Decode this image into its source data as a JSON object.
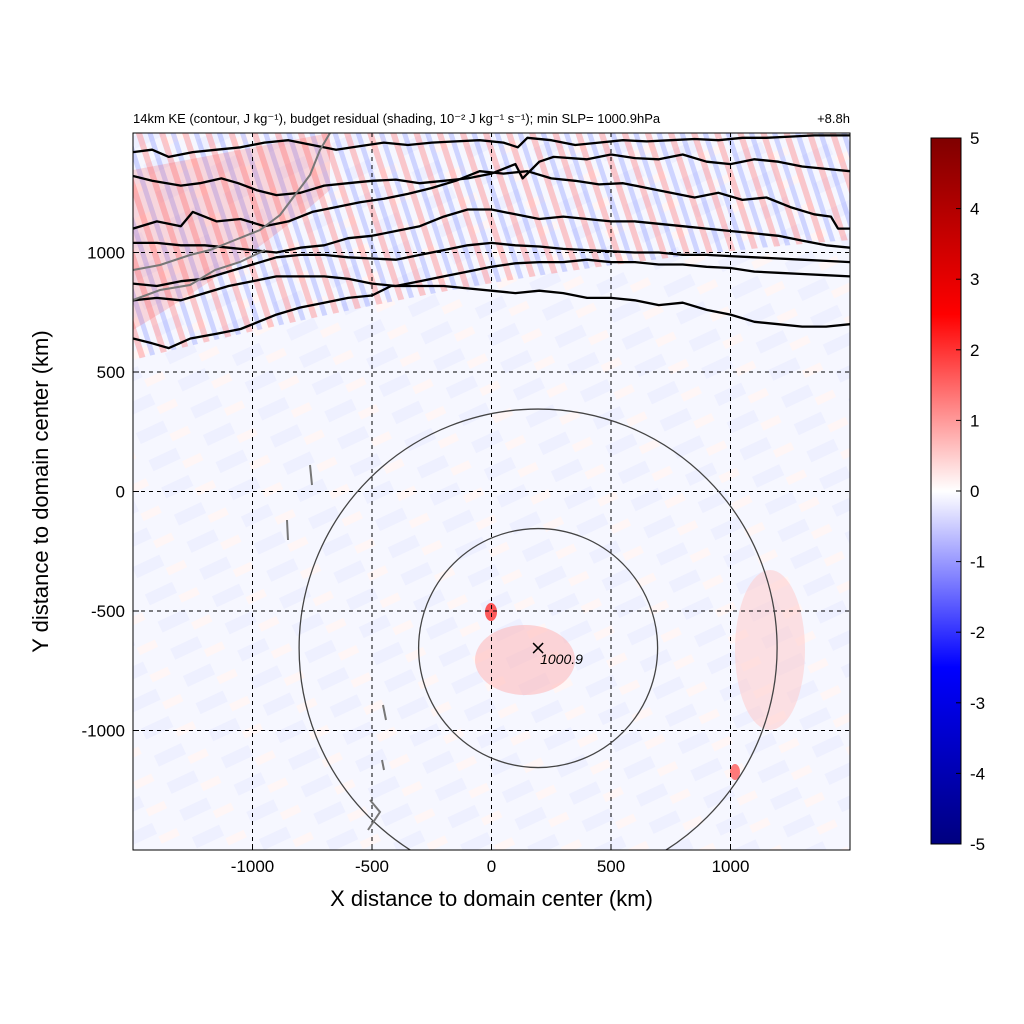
{
  "chart_data": {
    "type": "heatmap",
    "title": "14km KE (contour, J kg⁻¹), budget residual (shading, 10⁻² J kg⁻¹ s⁻¹); min SLP= 1000.9hPa",
    "time_label": "+8.8h",
    "xlabel": "X distance to domain center (km)",
    "ylabel": "Y distance to domain center (km)",
    "xlim": [
      -1500,
      1500
    ],
    "ylim": [
      -1500,
      1500
    ],
    "xticks": [
      -1000,
      -500,
      0,
      500,
      1000
    ],
    "yticks": [
      -1000,
      -500,
      0,
      500,
      1000
    ],
    "grid": true,
    "colorbar": {
      "range": [
        -5,
        5
      ],
      "ticks": [
        5,
        4,
        3,
        2,
        1,
        0,
        -1,
        -2,
        -3,
        -4,
        -5
      ],
      "colors": [
        "#000080",
        "#0000ff",
        "#ffffff",
        "#ff0000",
        "#800000"
      ]
    },
    "storm_center": {
      "x": 195,
      "y": -655,
      "label": "1000.9"
    },
    "range_circles_km": [
      500,
      1000
    ],
    "ke_contours": [
      {
        "points": [
          [
            -1500,
            640
          ],
          [
            -1420,
            620
          ],
          [
            -1350,
            600
          ],
          [
            -1260,
            640
          ],
          [
            -1150,
            660
          ],
          [
            -1050,
            680
          ],
          [
            -900,
            740
          ],
          [
            -800,
            770
          ],
          [
            -700,
            790
          ],
          [
            -600,
            810
          ],
          [
            -500,
            820
          ],
          [
            -420,
            860
          ],
          [
            -300,
            860
          ],
          [
            -200,
            860
          ],
          [
            -100,
            850
          ],
          [
            0,
            840
          ],
          [
            100,
            830
          ],
          [
            200,
            840
          ],
          [
            300,
            830
          ],
          [
            400,
            810
          ],
          [
            500,
            810
          ],
          [
            600,
            800
          ],
          [
            700,
            780
          ],
          [
            800,
            790
          ],
          [
            900,
            760
          ],
          [
            1000,
            740
          ],
          [
            1100,
            710
          ],
          [
            1200,
            700
          ],
          [
            1300,
            690
          ],
          [
            1400,
            690
          ],
          [
            1500,
            700
          ]
        ]
      },
      {
        "points": [
          [
            -1500,
            800
          ],
          [
            -1400,
            810
          ],
          [
            -1300,
            800
          ],
          [
            -1200,
            830
          ],
          [
            -1100,
            860
          ],
          [
            -1000,
            880
          ],
          [
            -900,
            900
          ],
          [
            -800,
            900
          ],
          [
            -700,
            900
          ],
          [
            -600,
            890
          ],
          [
            -500,
            870
          ],
          [
            -400,
            860
          ],
          [
            -300,
            880
          ],
          [
            -200,
            900
          ],
          [
            -100,
            920
          ],
          [
            0,
            940
          ],
          [
            100,
            955
          ],
          [
            200,
            960
          ],
          [
            300,
            960
          ],
          [
            400,
            970
          ],
          [
            500,
            960
          ],
          [
            600,
            960
          ],
          [
            700,
            950
          ],
          [
            800,
            950
          ],
          [
            900,
            940
          ],
          [
            1000,
            935
          ],
          [
            1100,
            920
          ],
          [
            1200,
            915
          ],
          [
            1300,
            910
          ],
          [
            1400,
            905
          ],
          [
            1500,
            900
          ]
        ]
      },
      {
        "points": [
          [
            -1500,
            870
          ],
          [
            -1400,
            860
          ],
          [
            -1300,
            880
          ],
          [
            -1200,
            890
          ],
          [
            -1100,
            920
          ],
          [
            -1000,
            950
          ],
          [
            -900,
            980
          ],
          [
            -800,
            990
          ],
          [
            -700,
            990
          ],
          [
            -600,
            980
          ],
          [
            -500,
            975
          ],
          [
            -400,
            970
          ],
          [
            -300,
            990
          ],
          [
            -200,
            1010
          ],
          [
            -100,
            1030
          ],
          [
            0,
            1040
          ],
          [
            100,
            1030
          ],
          [
            200,
            1025
          ],
          [
            300,
            1015
          ],
          [
            400,
            1010
          ],
          [
            500,
            1005
          ],
          [
            600,
            1000
          ],
          [
            700,
            1000
          ],
          [
            800,
            990
          ],
          [
            900,
            990
          ],
          [
            1000,
            985
          ],
          [
            1100,
            980
          ],
          [
            1200,
            975
          ],
          [
            1300,
            970
          ],
          [
            1400,
            965
          ],
          [
            1500,
            960
          ]
        ]
      },
      {
        "points": [
          [
            -1500,
            1040
          ],
          [
            -1400,
            1040
          ],
          [
            -1300,
            1030
          ],
          [
            -1200,
            1030
          ],
          [
            -1100,
            1020
          ],
          [
            -1000,
            1010
          ],
          [
            -900,
            1000
          ],
          [
            -800,
            1020
          ],
          [
            -700,
            1030
          ],
          [
            -600,
            1060
          ],
          [
            -500,
            1070
          ],
          [
            -400,
            1090
          ],
          [
            -300,
            1110
          ],
          [
            -200,
            1150
          ],
          [
            -100,
            1180
          ],
          [
            0,
            1180
          ],
          [
            100,
            1160
          ],
          [
            200,
            1140
          ],
          [
            300,
            1150
          ],
          [
            400,
            1140
          ],
          [
            500,
            1130
          ],
          [
            600,
            1130
          ],
          [
            700,
            1120
          ],
          [
            800,
            1110
          ],
          [
            900,
            1100
          ],
          [
            1000,
            1090
          ],
          [
            1100,
            1080
          ],
          [
            1200,
            1070
          ],
          [
            1300,
            1050
          ],
          [
            1400,
            1030
          ],
          [
            1500,
            1020
          ]
        ]
      },
      {
        "points": [
          [
            -1500,
            1100
          ],
          [
            -1400,
            1130
          ],
          [
            -1300,
            1110
          ],
          [
            -1250,
            1170
          ],
          [
            -1150,
            1130
          ],
          [
            -1050,
            1140
          ],
          [
            -950,
            1110
          ],
          [
            -850,
            1130
          ],
          [
            -750,
            1170
          ],
          [
            -650,
            1190
          ],
          [
            -550,
            1210
          ],
          [
            -450,
            1225
          ],
          [
            -350,
            1245
          ],
          [
            -250,
            1270
          ],
          [
            -150,
            1300
          ],
          [
            -50,
            1340
          ],
          [
            50,
            1330
          ],
          [
            150,
            1340
          ],
          [
            250,
            1310
          ],
          [
            350,
            1300
          ],
          [
            450,
            1285
          ],
          [
            550,
            1290
          ],
          [
            650,
            1270
          ],
          [
            750,
            1250
          ],
          [
            850,
            1230
          ],
          [
            950,
            1250
          ],
          [
            1050,
            1220
          ],
          [
            1150,
            1230
          ],
          [
            1250,
            1190
          ],
          [
            1350,
            1160
          ],
          [
            1420,
            1150
          ],
          [
            1450,
            1100
          ],
          [
            1500,
            1100
          ]
        ]
      },
      {
        "points": [
          [
            -1500,
            1320
          ],
          [
            -1420,
            1300
          ],
          [
            -1300,
            1280
          ],
          [
            -1220,
            1290
          ],
          [
            -1130,
            1310
          ],
          [
            -1060,
            1290
          ],
          [
            -980,
            1260
          ],
          [
            -900,
            1240
          ],
          [
            -800,
            1250
          ],
          [
            -700,
            1280
          ],
          [
            -600,
            1290
          ],
          [
            -500,
            1300
          ],
          [
            -400,
            1305
          ],
          [
            -300,
            1290
          ],
          [
            -200,
            1300
          ],
          [
            -100,
            1310
          ],
          [
            0,
            1330
          ],
          [
            100,
            1370
          ],
          [
            130,
            1310
          ],
          [
            200,
            1380
          ],
          [
            260,
            1400
          ],
          [
            400,
            1390
          ],
          [
            500,
            1410
          ],
          [
            600,
            1395
          ],
          [
            700,
            1390
          ],
          [
            800,
            1410
          ],
          [
            900,
            1380
          ],
          [
            1000,
            1370
          ],
          [
            1100,
            1390
          ],
          [
            1200,
            1380
          ],
          [
            1300,
            1360
          ],
          [
            1400,
            1350
          ],
          [
            1500,
            1340
          ]
        ]
      },
      {
        "points": [
          [
            -1500,
            1420
          ],
          [
            -1420,
            1430
          ],
          [
            -1350,
            1400
          ],
          [
            -1250,
            1420
          ],
          [
            -1150,
            1430
          ],
          [
            -1050,
            1440
          ],
          [
            -950,
            1460
          ],
          [
            -850,
            1470
          ],
          [
            -750,
            1450
          ],
          [
            -650,
            1430
          ],
          [
            -550,
            1445
          ],
          [
            -450,
            1460
          ],
          [
            -350,
            1450
          ],
          [
            -250,
            1460
          ],
          [
            -150,
            1465
          ],
          [
            -50,
            1470
          ],
          [
            50,
            1460
          ],
          [
            110,
            1440
          ],
          [
            150,
            1480
          ],
          [
            250,
            1470
          ],
          [
            350,
            1450
          ],
          [
            450,
            1460
          ],
          [
            550,
            1470
          ],
          [
            650,
            1465
          ],
          [
            750,
            1470
          ],
          [
            850,
            1475
          ],
          [
            950,
            1470
          ],
          [
            1050,
            1480
          ],
          [
            1150,
            1480
          ],
          [
            1250,
            1485
          ],
          [
            1350,
            1490
          ],
          [
            1500,
            1490
          ]
        ]
      }
    ]
  }
}
